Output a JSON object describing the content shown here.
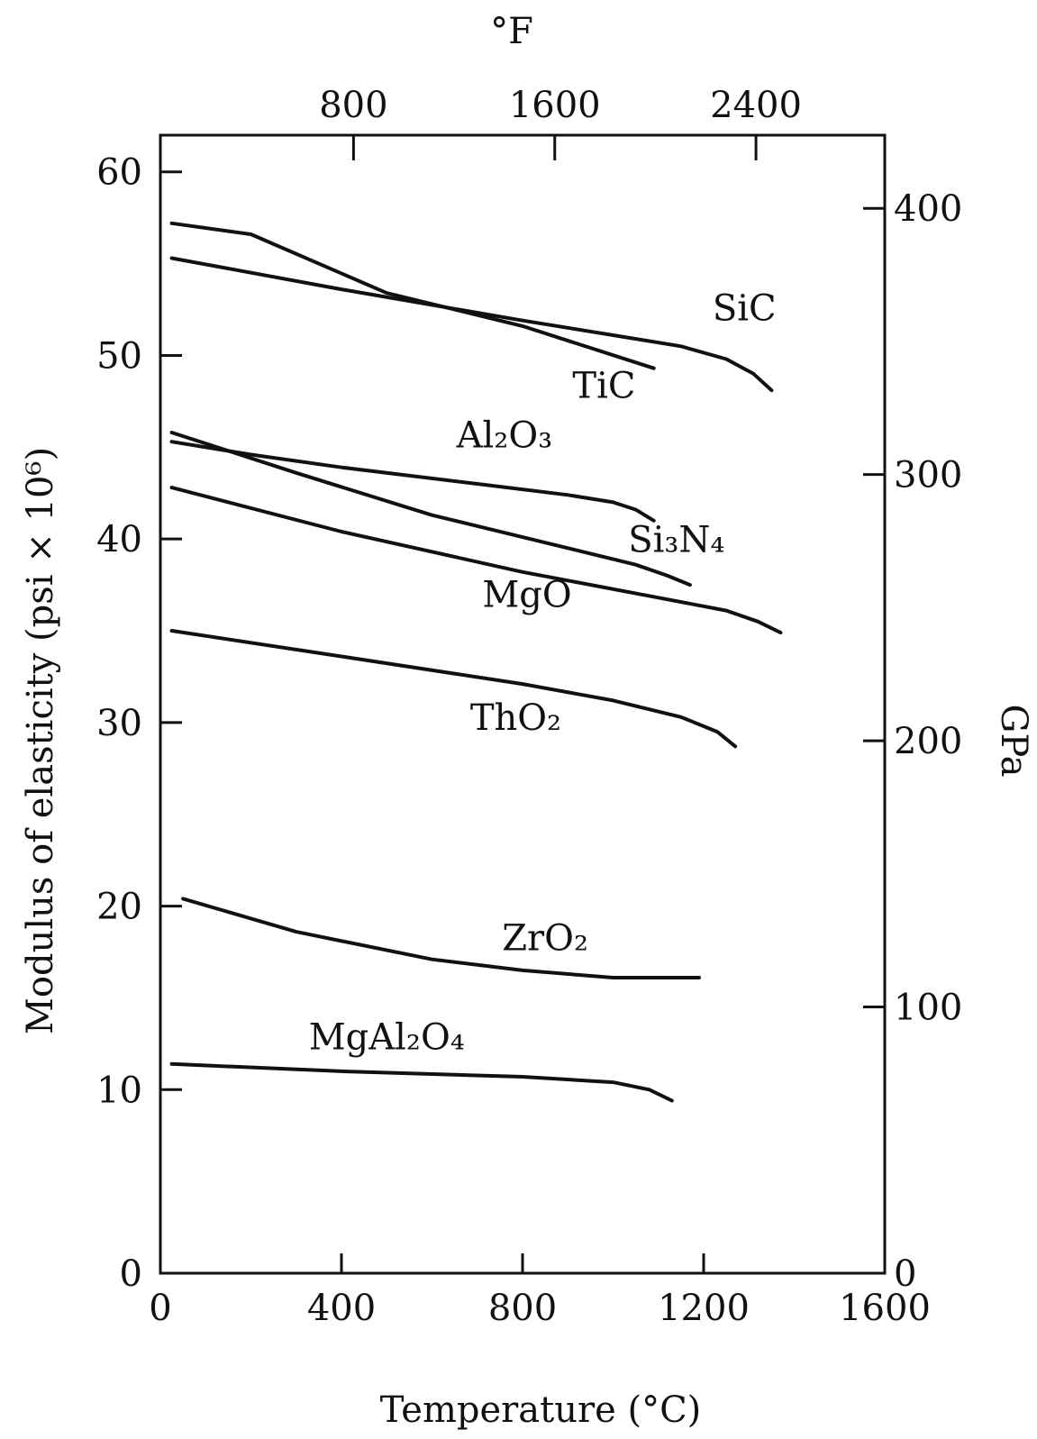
{
  "chart_data": {
    "type": "line",
    "xlabel": "Temperature (°C)",
    "ylabel": "Modulus of elasticity (psi × 10⁶)",
    "y2label": "GPa",
    "x2label": "°F",
    "xlim": [
      0,
      1600
    ],
    "ylim": [
      0,
      62
    ],
    "y2lim": [
      0,
      427.5
    ],
    "x2lim": [
      32,
      2912
    ],
    "xticks": [
      "0",
      "400",
      "800",
      "1200",
      "1600"
    ],
    "xtick_values": [
      0,
      400,
      800,
      1200,
      1600
    ],
    "yticks": [
      "0",
      "10",
      "20",
      "30",
      "40",
      "50",
      "60"
    ],
    "ytick_values": [
      0,
      10,
      20,
      30,
      40,
      50,
      60
    ],
    "y2ticks": [
      "0",
      "100",
      "200",
      "300",
      "400"
    ],
    "y2tick_values": [
      0,
      100,
      200,
      300,
      400
    ],
    "x2ticks": [
      "800",
      "1600",
      "2400"
    ],
    "x2tick_values": [
      800,
      1600,
      2400
    ],
    "grid": false,
    "legend": "none",
    "series": [
      {
        "name": "SiC",
        "label_html": "SiC",
        "label_at": [
          1290,
          51.9
        ],
        "x": [
          25,
          400,
          800,
          1000,
          1150,
          1250,
          1310,
          1350
        ],
        "y": [
          55.3,
          53.6,
          51.9,
          51.1,
          50.5,
          49.8,
          49.0,
          48.1
        ]
      },
      {
        "name": "TiC",
        "label_at": [
          980,
          47.7
        ],
        "x": [
          25,
          200,
          500,
          800,
          1090
        ],
        "y": [
          57.2,
          56.6,
          53.4,
          51.6,
          49.3
        ]
      },
      {
        "name": "Al₂O₃",
        "label_at": [
          760,
          45.0
        ],
        "x": [
          25,
          200,
          400,
          700,
          900,
          1000,
          1050,
          1090
        ],
        "y": [
          45.3,
          44.6,
          43.9,
          43.0,
          42.4,
          42.0,
          41.6,
          41.0
        ]
      },
      {
        "name": "Si₃N₄",
        "label_at": [
          1140,
          39.3
        ],
        "x": [
          25,
          300,
          600,
          900,
          1050,
          1120,
          1170
        ],
        "y": [
          45.8,
          43.6,
          41.3,
          39.5,
          38.6,
          38.0,
          37.5
        ]
      },
      {
        "name": "MgO",
        "label_at": [
          810,
          36.3
        ],
        "x": [
          25,
          400,
          800,
          1100,
          1250,
          1320,
          1370
        ],
        "y": [
          42.8,
          40.4,
          38.2,
          36.8,
          36.1,
          35.5,
          34.9
        ]
      },
      {
        "name": "ThO₂",
        "label_at": [
          785,
          29.6
        ],
        "x": [
          25,
          400,
          800,
          1000,
          1150,
          1230,
          1270
        ],
        "y": [
          35.0,
          33.6,
          32.1,
          31.2,
          30.3,
          29.5,
          28.7
        ]
      },
      {
        "name": "ZrO₂",
        "label_at": [
          850,
          17.6
        ],
        "x": [
          50,
          300,
          600,
          800,
          1000,
          1190
        ],
        "y": [
          20.4,
          18.6,
          17.1,
          16.5,
          16.1,
          16.1
        ]
      },
      {
        "name": "MgAl₂O₄",
        "label_at": [
          500,
          12.2
        ],
        "x": [
          25,
          400,
          800,
          1000,
          1080,
          1130
        ],
        "y": [
          11.4,
          11.0,
          10.7,
          10.4,
          10.0,
          9.4
        ]
      }
    ]
  }
}
